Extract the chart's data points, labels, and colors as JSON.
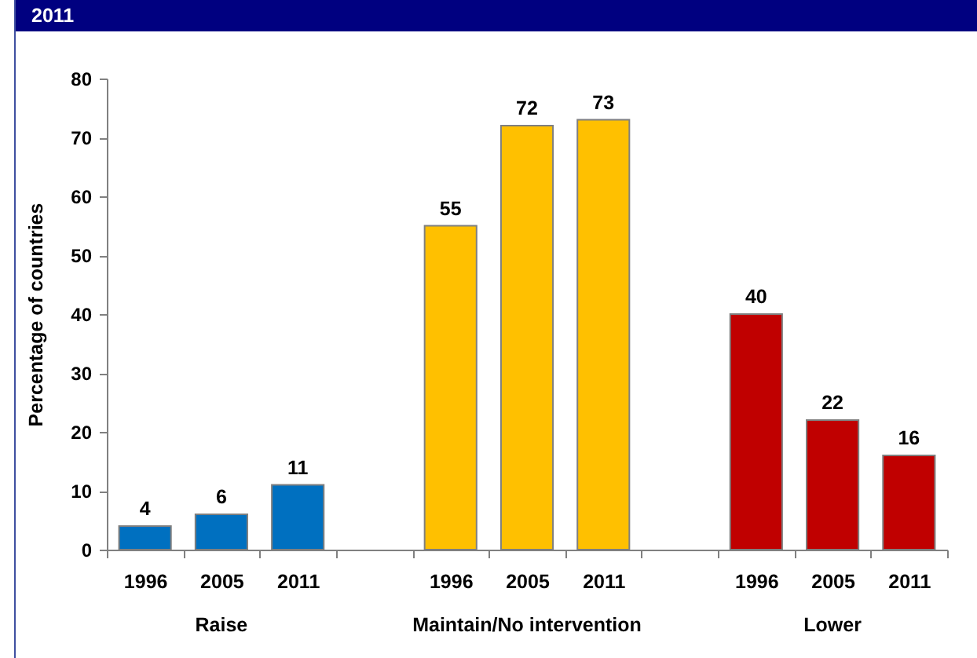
{
  "chart_data": {
    "type": "bar",
    "title": "2011",
    "ylabel": "Percentage of countries",
    "categories": [
      "Raise",
      "Maintain/No intervention",
      "Lower"
    ],
    "series": [
      {
        "name": "1996",
        "colors": [
          "#0070c0",
          "#ffc000",
          "#c00000"
        ],
        "values": [
          4,
          55,
          40
        ]
      },
      {
        "name": "2005",
        "colors": [
          "#0070c0",
          "#ffc000",
          "#c00000"
        ],
        "values": [
          6,
          72,
          22
        ]
      },
      {
        "name": "2011",
        "colors": [
          "#0070c0",
          "#ffc000",
          "#c00000"
        ],
        "values": [
          11,
          73,
          16
        ]
      }
    ],
    "ylim": [
      0,
      80
    ],
    "yticks": [
      0,
      10,
      20,
      30,
      40,
      50,
      60,
      70,
      80
    ],
    "data_labels": true,
    "legend": "bottom"
  }
}
